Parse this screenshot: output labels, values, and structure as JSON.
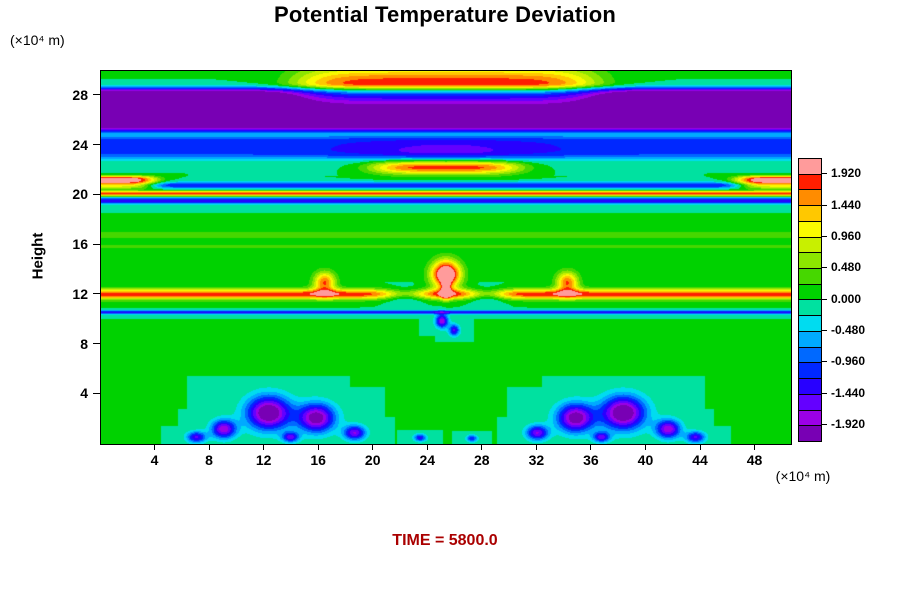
{
  "title": "Potential Temperature Deviation",
  "time_label": "TIME = 5800.0",
  "axes": {
    "y_label": "Height",
    "y_unit": "(×10⁴ m)",
    "x_unit": "(×10⁴ m)",
    "x_ticks": [
      4,
      8,
      12,
      16,
      20,
      24,
      28,
      32,
      36,
      40,
      44,
      48
    ],
    "y_ticks": [
      4,
      8,
      12,
      16,
      20,
      24,
      28
    ]
  },
  "colors": {
    "time_text": "#aa0000",
    "frame": "#000000",
    "background": "#ffffff"
  },
  "colorbar": {
    "min": -2.16,
    "max": 2.16,
    "step": 0.24,
    "labels": [
      "1.920",
      "1.440",
      "0.960",
      "0.480",
      "0.000",
      "-0.480",
      "-0.960",
      "-1.440",
      "-1.920"
    ],
    "palette": [
      "#7800b4",
      "#9b00e6",
      "#6400ff",
      "#2800ff",
      "#0028ff",
      "#0069ff",
      "#00aaff",
      "#00dcf0",
      "#00e1a0",
      "#00d200",
      "#46d700",
      "#8ce600",
      "#c8f000",
      "#fafa00",
      "#ffc800",
      "#ff8c00",
      "#ff1e00",
      "#ff9b9b"
    ]
  },
  "chart_data": {
    "type": "heatmap",
    "title": "Potential Temperature Deviation",
    "xlabel": "(×10⁴ m)",
    "ylabel": "Height (×10⁴ m)",
    "xlim": [
      0,
      50.6
    ],
    "ylim": [
      0,
      30
    ],
    "x_ticks": [
      4,
      8,
      12,
      16,
      20,
      24,
      28,
      32,
      36,
      40,
      44,
      48
    ],
    "y_ticks": [
      4,
      8,
      12,
      16,
      20,
      24,
      28
    ],
    "value_range": [
      -2.16,
      2.16
    ],
    "contour_interval": 0.24,
    "colorbar_tick_values": [
      1.92,
      1.44,
      0.96,
      0.48,
      0.0,
      -0.48,
      -0.96,
      -1.44,
      -1.92
    ],
    "background_value": 0.0,
    "grid": false,
    "legend_position": "right",
    "annotations": [
      "TIME = 5800.0"
    ],
    "features": {
      "bands": [
        {
          "z": 26.9,
          "rz": 1.75,
          "pz": 8,
          "amp": -2.5
        },
        {
          "z": 23.9,
          "rz": 1.0,
          "pz": 4,
          "amp": -1.1
        },
        {
          "z": 20.8,
          "rz": 0.25,
          "amp": -1.2
        },
        {
          "z": 20.15,
          "rz": 0.2,
          "amp": 1.9
        },
        {
          "z": 19.55,
          "rz": 0.25,
          "amp": -1.4
        },
        {
          "z": 16.8,
          "rz": 0.28,
          "amp": 0.45
        },
        {
          "z": 15.9,
          "rz": 0.22,
          "amp": 0.3
        },
        {
          "z": 12.05,
          "rz": 0.42,
          "amp": 1.85
        },
        {
          "z": 10.6,
          "rz": 0.15,
          "amp": -1.35
        }
      ],
      "blobs": [
        {
          "x": 25.3,
          "z": 28.9,
          "rx": 11.0,
          "px": 6,
          "rz": 1.45,
          "amp": 1.9
        },
        {
          "x": 25.3,
          "z": 23.5,
          "rx": 7.0,
          "rz": 1.1,
          "amp": -0.45
        },
        {
          "x": 25.3,
          "z": 22.25,
          "rx": 5.5,
          "px": 4,
          "rz": 0.55,
          "amp": 1.9
        },
        {
          "x": 0.8,
          "z": 21.05,
          "rx": 3.2,
          "px": 4,
          "rz": 0.5,
          "pz": 4,
          "amp": 2.5
        },
        {
          "x": 49.8,
          "z": 21.05,
          "rx": 3.2,
          "px": 4,
          "rz": 0.5,
          "pz": 4,
          "amp": 2.5
        },
        {
          "x": 16.4,
          "z": 13.0,
          "rx": 0.8,
          "rz": 0.85,
          "amp": 1.7
        },
        {
          "x": 34.2,
          "z": 13.0,
          "rx": 0.8,
          "rz": 0.85,
          "amp": 1.7
        },
        {
          "x": 25.3,
          "z": 13.65,
          "rx": 1.05,
          "rz": 1.1,
          "amp": 2.8
        },
        {
          "x": 25.3,
          "z": 12.4,
          "rx": 0.33,
          "rz": 0.7,
          "amp": 1.7
        },
        {
          "x": 22.3,
          "z": 12.0,
          "rx": 1.7,
          "rz": 0.5,
          "amp": -1.3
        },
        {
          "x": 28.3,
          "z": 12.0,
          "rx": 1.5,
          "rz": 0.5,
          "amp": -1.3
        },
        {
          "x": 25.0,
          "z": 9.9,
          "rx": 0.45,
          "rz": 0.55,
          "amp": -1.9
        },
        {
          "x": 25.9,
          "z": 9.15,
          "rx": 0.38,
          "rz": 0.45,
          "amp": -1.5
        },
        {
          "x": 12.3,
          "z": 2.5,
          "rx": 1.6,
          "rz": 1.35,
          "amp": -2.4
        },
        {
          "x": 15.8,
          "z": 2.1,
          "rx": 1.35,
          "rz": 1.15,
          "amp": -2.2
        },
        {
          "x": 9.0,
          "z": 1.2,
          "rx": 0.9,
          "rz": 0.75,
          "amp": -1.9
        },
        {
          "x": 7.0,
          "z": 0.55,
          "rx": 0.7,
          "rz": 0.45,
          "amp": -1.5
        },
        {
          "x": 18.6,
          "z": 0.9,
          "rx": 0.8,
          "rz": 0.6,
          "amp": -1.7
        },
        {
          "x": 13.9,
          "z": 0.55,
          "rx": 0.6,
          "rz": 0.4,
          "amp": -1.5
        },
        {
          "x": 38.3,
          "z": 2.5,
          "rx": 1.6,
          "rz": 1.35,
          "amp": -2.4
        },
        {
          "x": 34.8,
          "z": 2.1,
          "rx": 1.35,
          "rz": 1.15,
          "amp": -2.2
        },
        {
          "x": 41.6,
          "z": 1.2,
          "rx": 0.9,
          "rz": 0.75,
          "amp": -1.9
        },
        {
          "x": 43.6,
          "z": 0.55,
          "rx": 0.7,
          "rz": 0.45,
          "amp": -1.5
        },
        {
          "x": 32.0,
          "z": 0.9,
          "rx": 0.8,
          "rz": 0.6,
          "amp": -1.7
        },
        {
          "x": 36.7,
          "z": 0.55,
          "rx": 0.6,
          "rz": 0.4,
          "amp": -1.5
        },
        {
          "x": 23.4,
          "z": 0.5,
          "rx": 0.45,
          "rz": 0.3,
          "amp": -1.3
        },
        {
          "x": 27.2,
          "z": 0.45,
          "rx": 0.4,
          "rz": 0.28,
          "amp": -1.2
        }
      ]
    }
  }
}
